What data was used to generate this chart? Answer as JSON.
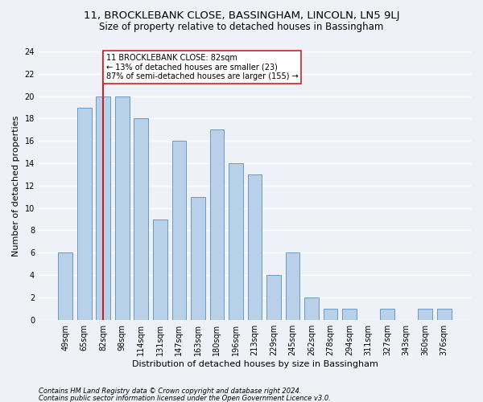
{
  "title1": "11, BROCKLEBANK CLOSE, BASSINGHAM, LINCOLN, LN5 9LJ",
  "title2": "Size of property relative to detached houses in Bassingham",
  "xlabel": "Distribution of detached houses by size in Bassingham",
  "ylabel": "Number of detached properties",
  "categories": [
    "49sqm",
    "65sqm",
    "82sqm",
    "98sqm",
    "114sqm",
    "131sqm",
    "147sqm",
    "163sqm",
    "180sqm",
    "196sqm",
    "213sqm",
    "229sqm",
    "245sqm",
    "262sqm",
    "278sqm",
    "294sqm",
    "311sqm",
    "327sqm",
    "343sqm",
    "360sqm",
    "376sqm"
  ],
  "values": [
    6,
    19,
    20,
    20,
    18,
    9,
    16,
    11,
    17,
    14,
    13,
    4,
    6,
    2,
    1,
    1,
    0,
    1,
    0,
    1,
    1
  ],
  "bar_color": "#b8d0e8",
  "bar_edge_color": "#6699cc",
  "property_index": 2,
  "property_line_color": "#cc2222",
  "annotation_text": "11 BROCKLEBANK CLOSE: 82sqm\n← 13% of detached houses are smaller (23)\n87% of semi-detached houses are larger (155) →",
  "annotation_box_color": "#ffffff",
  "annotation_box_edge": "#cc2222",
  "footer1": "Contains HM Land Registry data © Crown copyright and database right 2024.",
  "footer2": "Contains public sector information licensed under the Open Government Licence v3.0.",
  "ylim": [
    0,
    24
  ],
  "yticks": [
    0,
    2,
    4,
    6,
    8,
    10,
    12,
    14,
    16,
    18,
    20,
    22,
    24
  ],
  "bg_color": "#eef2f8",
  "grid_color": "#ffffff",
  "title1_fontsize": 9.5,
  "title2_fontsize": 8.5,
  "xlabel_fontsize": 8,
  "ylabel_fontsize": 8,
  "tick_fontsize": 7,
  "annot_fontsize": 7,
  "footer_fontsize": 6
}
